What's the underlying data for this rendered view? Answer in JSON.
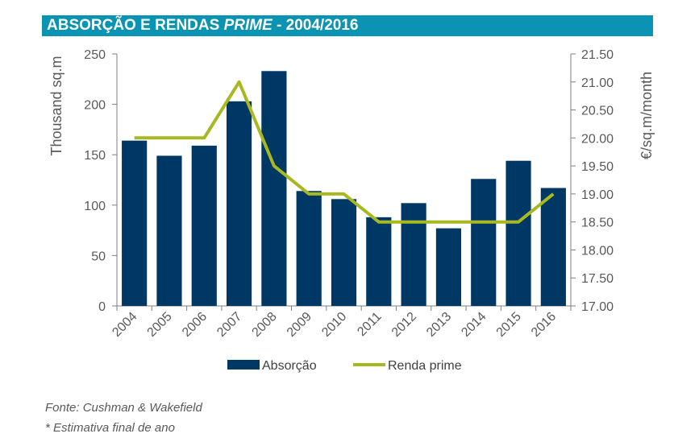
{
  "header": {
    "title_prefix": "ABSORÇÃO E RENDAS ",
    "title_italic": "PRIME",
    "title_suffix": " - 2004/2016",
    "color": "#0a93b2"
  },
  "chart_data": {
    "type": "bar",
    "categories": [
      "2004",
      "2005",
      "2006",
      "2007",
      "2008",
      "2009",
      "2010",
      "2011",
      "2012",
      "2013",
      "2014",
      "2015",
      "2016"
    ],
    "series": [
      {
        "name": "Absorção",
        "type": "bar",
        "axis": "left",
        "color": "#003865",
        "values": [
          164,
          149,
          159,
          203,
          233,
          114,
          106,
          88,
          102,
          77,
          126,
          144,
          117
        ]
      },
      {
        "name": "Renda prime",
        "type": "line",
        "axis": "right",
        "color": "#a8b820",
        "values": [
          20.0,
          20.0,
          20.0,
          21.0,
          19.5,
          19.0,
          19.0,
          18.5,
          18.5,
          18.5,
          18.5,
          18.5,
          19.0
        ]
      }
    ],
    "ylabel": "Thousand  sq.m",
    "y2label": "€/sq.m/month",
    "ylim": [
      0,
      250
    ],
    "y2lim": [
      17.0,
      21.5
    ],
    "yticks": [
      "0",
      "50",
      "100",
      "150",
      "200",
      "250"
    ],
    "y2ticks": [
      "17.00",
      "17.50",
      "18.00",
      "18.50",
      "19.00",
      "19.50",
      "20.00",
      "20.50",
      "21.00",
      "21.50"
    ],
    "grid": false,
    "legend_position": "bottom"
  },
  "footnotes": {
    "source": "Fonte: Cushman & Wakefield",
    "note": "* Estimativa final de ano"
  }
}
